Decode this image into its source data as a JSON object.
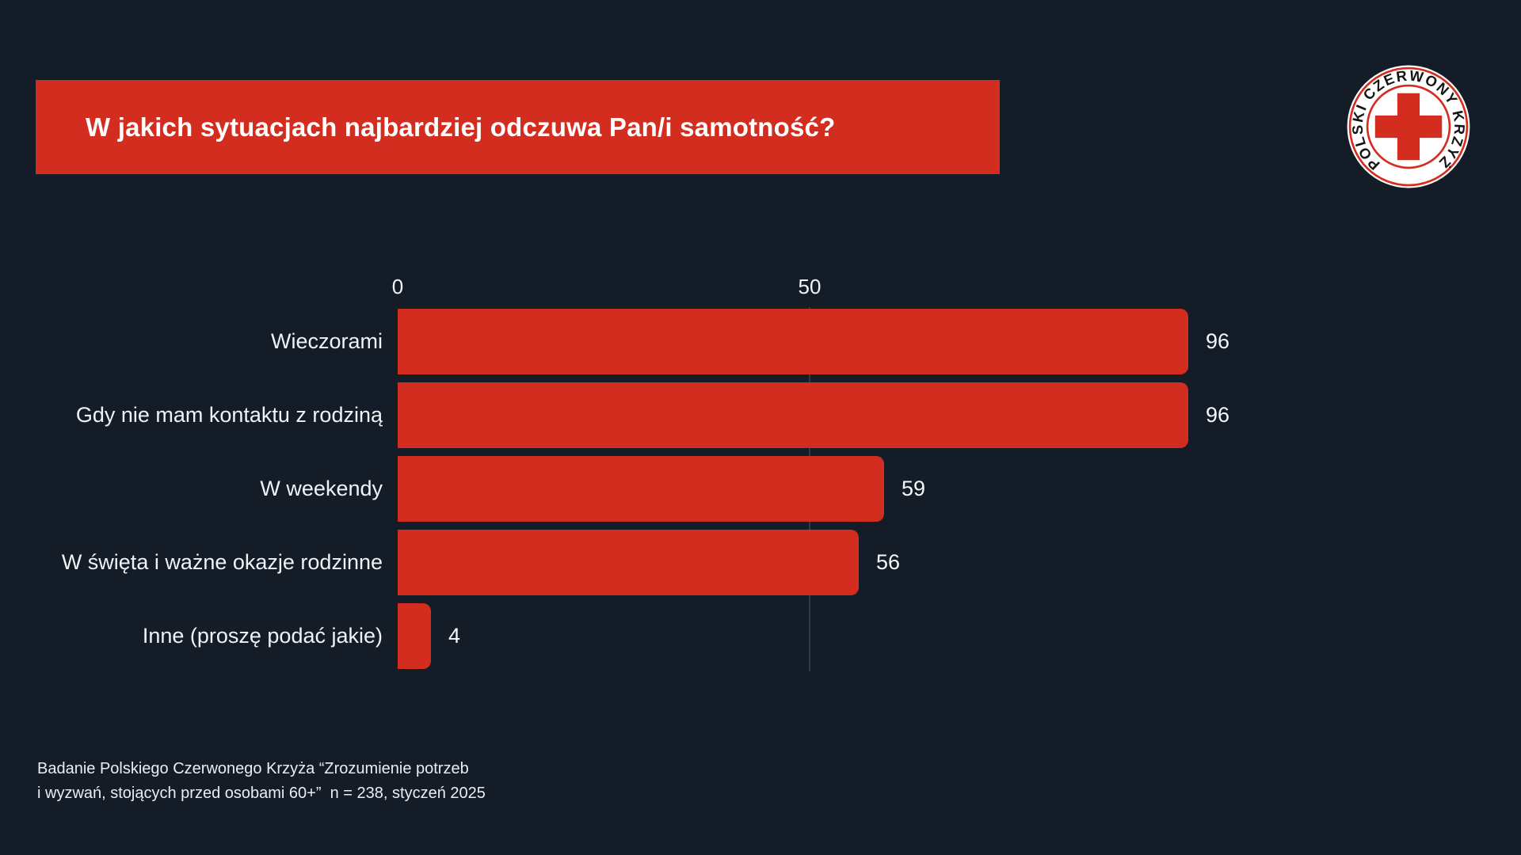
{
  "header": {
    "title": "W jakich sytuacjach najbardziej odczuwa Pan/i samotność?"
  },
  "logo": {
    "organization": "Polski Czerwony Krzyż",
    "ring_text": "POLSKI CZERWONY KRZYŻ",
    "symbol": "red-cross",
    "colors": {
      "red": "#d32d20",
      "disc": "#ffffff",
      "text": "#141414"
    }
  },
  "chart_data": {
    "type": "bar",
    "orientation": "horizontal",
    "title": "W jakich sytuacjach najbardziej odczuwa Pan/i samotność?",
    "categories": [
      "Wieczorami",
      "Gdy nie mam kontaktu z rodziną",
      "W weekendy",
      "W święta i ważne okazje rodzinne",
      "Inne (proszę podać jakie)"
    ],
    "values": [
      96,
      96,
      59,
      56,
      4
    ],
    "x_ticks": [
      0,
      50
    ],
    "xlim": [
      0,
      100
    ],
    "value_labels": true,
    "grid": "single vertical gridline at 50",
    "legend": "none",
    "bar_color": "#d32d20"
  },
  "footer": {
    "line1": "Badanie Polskiego Czerwonego Krzyża “Zrozumienie potrzeb",
    "line2": "i wyzwań, stojących przed osobami 60+”  n = 238, styczeń 2025"
  },
  "colors": {
    "background": "#131c27",
    "accent_red": "#d32d20",
    "text": "#f0f3f5",
    "gridline": "#2d3a47"
  }
}
